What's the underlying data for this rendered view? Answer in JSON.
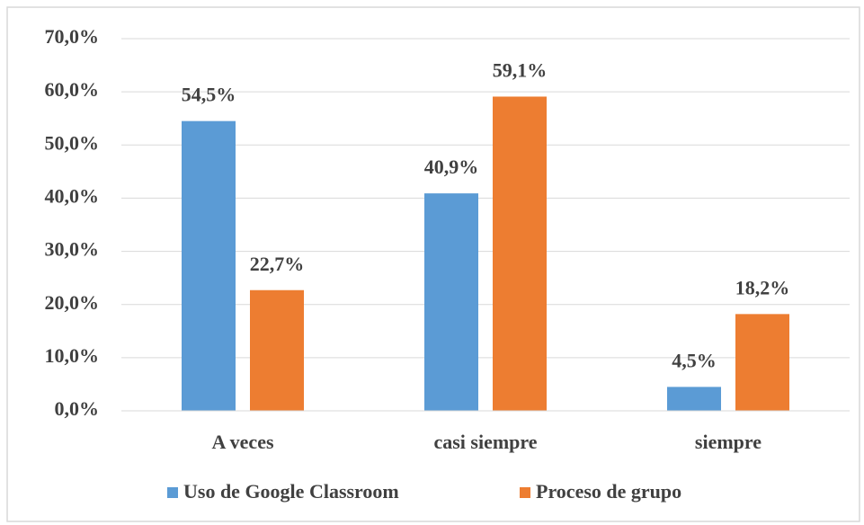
{
  "chart_data": {
    "type": "bar",
    "categories": [
      "A veces",
      "casi siempre",
      "siempre"
    ],
    "series": [
      {
        "name": "Uso de Google Classroom",
        "color": "#5b9bd5",
        "values": [
          54.5,
          40.9,
          4.5
        ],
        "value_labels": [
          "54,5%",
          "40,9%",
          "4,5%"
        ]
      },
      {
        "name": "Proceso de grupo",
        "color": "#ed7d31",
        "values": [
          22.7,
          59.1,
          18.2
        ],
        "value_labels": [
          "22,7%",
          "59,1%",
          "18,2%"
        ]
      }
    ],
    "ylim": [
      0,
      70
    ],
    "yticks": [
      {
        "value": 0,
        "label": "0,0%"
      },
      {
        "value": 10,
        "label": "10,0%"
      },
      {
        "value": 20,
        "label": "20,0%"
      },
      {
        "value": 30,
        "label": "30,0%"
      },
      {
        "value": 40,
        "label": "40,0%"
      },
      {
        "value": 50,
        "label": "50,0%"
      },
      {
        "value": 60,
        "label": "60,0%"
      },
      {
        "value": 70,
        "label": "70,0%"
      }
    ],
    "grid": true,
    "legend": "bottom"
  }
}
